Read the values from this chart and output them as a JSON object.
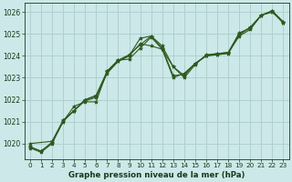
{
  "bg_color": "#cce8e8",
  "grid_color": "#b0d0d0",
  "line_color": "#2d5a1e",
  "text_color": "#1a3a1a",
  "xlabel": "Graphe pression niveau de la mer (hPa)",
  "ylim": [
    1019.3,
    1026.4
  ],
  "xlim": [
    -0.5,
    23.5
  ],
  "yticks": [
    1020,
    1021,
    1022,
    1023,
    1024,
    1025,
    1026
  ],
  "xticks": [
    0,
    1,
    2,
    3,
    4,
    5,
    6,
    7,
    8,
    9,
    10,
    11,
    12,
    13,
    14,
    15,
    16,
    17,
    18,
    19,
    20,
    21,
    22,
    23
  ],
  "series1_x": [
    0,
    1,
    2,
    3,
    4,
    5,
    6,
    7,
    8,
    9,
    10,
    11,
    12,
    13,
    14,
    15,
    16,
    17,
    18,
    19,
    20,
    21,
    22,
    23
  ],
  "series1_y": [
    1019.8,
    1019.6,
    1020.0,
    1021.0,
    1021.7,
    1021.9,
    1021.9,
    1023.3,
    1023.8,
    1023.85,
    1024.35,
    1024.85,
    1024.3,
    1023.5,
    1023.0,
    1023.6,
    1024.05,
    1024.1,
    1024.15,
    1024.9,
    1025.2,
    1025.85,
    1026.0,
    1025.5
  ],
  "series2_x": [
    0,
    1,
    2,
    3,
    4,
    5,
    6,
    7,
    8,
    9,
    10,
    11,
    12,
    13,
    14,
    15,
    16,
    17,
    18,
    19,
    20,
    21,
    22,
    23
  ],
  "series2_y": [
    1019.85,
    1019.65,
    1020.05,
    1021.05,
    1021.5,
    1022.0,
    1022.15,
    1023.25,
    1023.75,
    1024.0,
    1024.8,
    1024.9,
    1024.35,
    1023.1,
    1023.15,
    1023.65,
    1024.0,
    1024.05,
    1024.15,
    1025.05,
    1025.25,
    1025.85,
    1026.05,
    1025.5
  ],
  "series3_x": [
    0,
    2,
    3,
    4,
    5,
    6,
    7,
    8,
    9,
    10,
    11,
    12,
    13,
    14,
    15,
    16,
    17,
    18,
    19,
    20,
    21,
    22,
    23
  ],
  "series3_y": [
    1020.0,
    1020.1,
    1021.05,
    1021.5,
    1022.0,
    1022.2,
    1023.3,
    1023.8,
    1024.05,
    1024.5,
    1024.9,
    1024.45,
    1023.5,
    1023.1,
    1023.65,
    1024.0,
    1024.1,
    1024.15,
    1025.0,
    1025.3,
    1025.85,
    1026.05,
    1025.55
  ],
  "series4_x": [
    0,
    1,
    2,
    3,
    4,
    5,
    6,
    7,
    8,
    9,
    10,
    11,
    12,
    13,
    14,
    15,
    16,
    17,
    18,
    19,
    20,
    21,
    22,
    23
  ],
  "series4_y": [
    1019.85,
    1019.65,
    1020.05,
    1021.0,
    1021.5,
    1021.95,
    1022.1,
    1023.2,
    1023.75,
    1024.0,
    1024.55,
    1024.45,
    1024.3,
    1023.0,
    1023.2,
    1023.65,
    1024.0,
    1024.05,
    1024.1,
    1024.95,
    1025.3,
    1025.85,
    1026.0,
    1025.5
  ]
}
